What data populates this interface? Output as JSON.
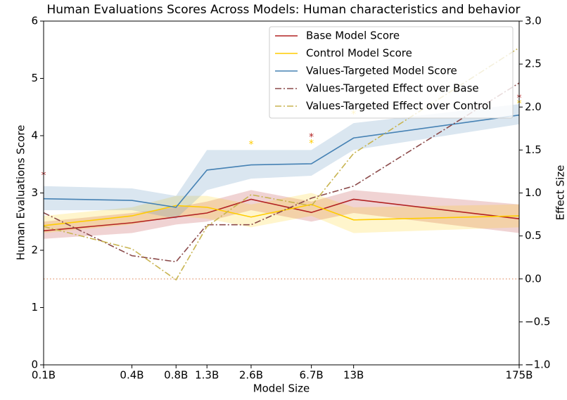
{
  "chart_data": {
    "type": "line",
    "title": "Human Evaluations Scores Across Models: Human characteristics and behavior",
    "x_label": "Model Size",
    "y_label": "Human Evaluations Score",
    "y2_label": "Effect Size",
    "log_x": true,
    "x": [
      0.1,
      0.4,
      0.8,
      1.3,
      2.6,
      6.7,
      13,
      175
    ],
    "xlim": [
      0.1,
      175
    ],
    "xticks": [
      {
        "value": 0.1,
        "label": "0.1B"
      },
      {
        "value": 0.4,
        "label": "0.4B"
      },
      {
        "value": 0.8,
        "label": "0.8B"
      },
      {
        "value": 1.3,
        "label": "1.3B"
      },
      {
        "value": 2.6,
        "label": "2.6B"
      },
      {
        "value": 6.7,
        "label": "6.7B"
      },
      {
        "value": 13,
        "label": "13B"
      },
      {
        "value": 175,
        "label": "175B"
      }
    ],
    "ylim": [
      0,
      6
    ],
    "yticks": [
      0,
      1,
      2,
      3,
      4,
      5,
      6
    ],
    "y2lim": [
      -1,
      3
    ],
    "y2ticks": [
      {
        "value": -1,
        "label": "−1.0"
      },
      {
        "value": -0.5,
        "label": "−0.5"
      },
      {
        "value": 0,
        "label": "0.0"
      },
      {
        "value": 0.5,
        "label": "0.5"
      },
      {
        "value": 1,
        "label": "1.0"
      },
      {
        "value": 1.5,
        "label": "1.5"
      },
      {
        "value": 2,
        "label": "2.0"
      },
      {
        "value": 2.5,
        "label": "2.5"
      },
      {
        "value": 3,
        "label": "3.0"
      }
    ],
    "legend": "upper right",
    "series": [
      {
        "name": "Base Model Score",
        "color": "#b22222",
        "style": "solid",
        "values": [
          2.34,
          2.48,
          2.58,
          2.65,
          2.89,
          2.66,
          2.89,
          2.55
        ],
        "lower": [
          2.2,
          2.3,
          2.45,
          2.5,
          2.7,
          2.5,
          2.65,
          2.3
        ],
        "upper": [
          2.5,
          2.65,
          2.75,
          2.85,
          3.05,
          2.85,
          3.05,
          2.8
        ]
      },
      {
        "name": "Control Model Score",
        "color": "#ffcc00",
        "style": "solid",
        "values": [
          2.43,
          2.6,
          2.78,
          2.75,
          2.58,
          2.8,
          2.53,
          2.6
        ],
        "lower": [
          2.3,
          2.45,
          2.6,
          2.55,
          2.4,
          2.6,
          2.3,
          2.4
        ],
        "upper": [
          2.6,
          2.75,
          2.95,
          2.95,
          2.8,
          3.0,
          2.75,
          2.8
        ]
      },
      {
        "name": "Values-Targeted Model Score",
        "color": "#4682b4",
        "style": "solid",
        "values": [
          2.9,
          2.87,
          2.75,
          3.4,
          3.49,
          3.51,
          3.96,
          4.36
        ],
        "lower": [
          2.7,
          2.7,
          2.55,
          3.05,
          3.25,
          3.3,
          3.75,
          4.2
        ],
        "upper": [
          3.12,
          3.08,
          2.95,
          3.75,
          3.75,
          3.75,
          4.22,
          4.55
        ]
      },
      {
        "name": "Values-Targeted Effect over Base",
        "color": "#8b4a4a",
        "style": "dashdot",
        "axis": "y2",
        "values": [
          0.77,
          0.27,
          0.2,
          0.63,
          0.63,
          0.94,
          1.08,
          2.28
        ]
      },
      {
        "name": "Values-Targeted Effect over Control",
        "color": "#c8b450",
        "style": "dashdot",
        "axis": "y2",
        "values": [
          0.61,
          0.35,
          -0.01,
          0.61,
          0.98,
          0.85,
          1.46,
          2.69
        ]
      }
    ],
    "reference_line": {
      "axis": "y2",
      "value": 0,
      "color": "#e8a888"
    },
    "annotations": [
      {
        "text": "*",
        "x": 0.1,
        "y": 3.35,
        "color": "#b22222"
      },
      {
        "text": "*",
        "x": 2.6,
        "y": 3.89,
        "color": "#ffcc00"
      },
      {
        "text": "*",
        "x": 6.7,
        "y": 4.02,
        "color": "#b22222"
      },
      {
        "text": "*",
        "x": 6.7,
        "y": 3.91,
        "color": "#ffcc00"
      },
      {
        "text": "*",
        "x": 13,
        "y": 4.42,
        "color": "#ffcc00"
      },
      {
        "text": "*",
        "x": 175,
        "y": 4.7,
        "color": "#b22222"
      },
      {
        "text": "*",
        "x": 175,
        "y": 4.6,
        "color": "#ffcc00"
      }
    ]
  }
}
